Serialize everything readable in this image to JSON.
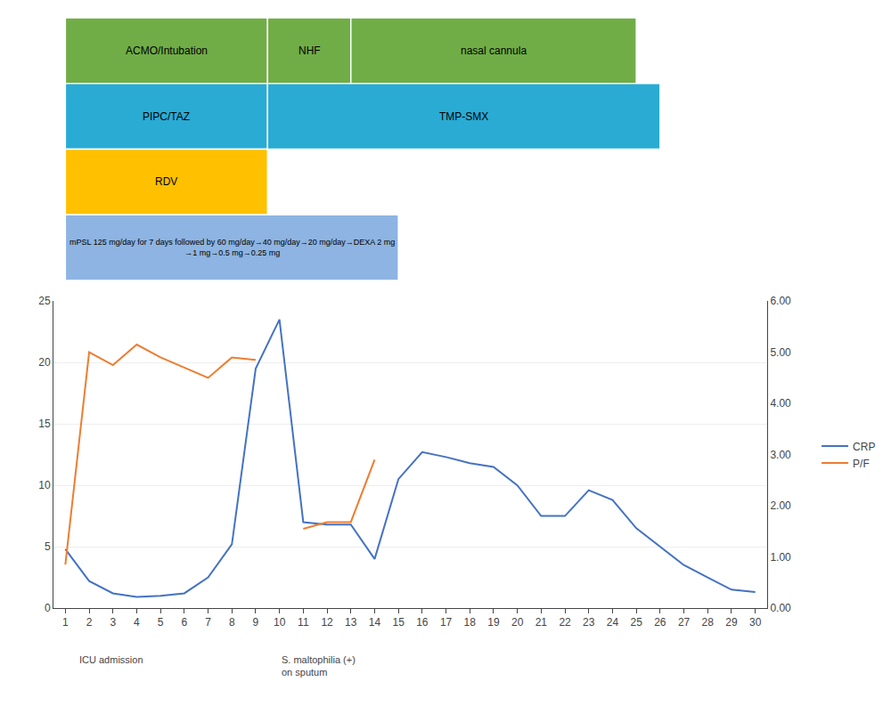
{
  "chart_data": [
    {
      "type": "line",
      "x": [
        1,
        2,
        3,
        4,
        5,
        6,
        7,
        8,
        9,
        10,
        11,
        12,
        13,
        14,
        15,
        16,
        17,
        18,
        19,
        20,
        21,
        22,
        23,
        24,
        25,
        26,
        27,
        28,
        29,
        30
      ],
      "series": [
        {
          "name": "CRP",
          "color": "#4472C4",
          "values": [
            4.8,
            2.2,
            1.2,
            0.9,
            1.0,
            1.2,
            2.5,
            5.2,
            19.5,
            23.5,
            7.0,
            6.8,
            6.8,
            4.0,
            10.5,
            12.7,
            12.3,
            11.8,
            11.5,
            10.0,
            7.5,
            7.5,
            9.6,
            8.8,
            6.5,
            5.0,
            3.5,
            2.5,
            1.5,
            1.3
          ]
        },
        {
          "name": "P/F",
          "color": "#ED7D31",
          "axis": "y2",
          "values": [
            0.85,
            5.0,
            4.75,
            5.15,
            4.9,
            4.7,
            4.5,
            4.9,
            4.85,
            null,
            1.55,
            1.68,
            1.68,
            2.9,
            null,
            null,
            null,
            null,
            null,
            null,
            null,
            null,
            null,
            null,
            null,
            null,
            null,
            null,
            null,
            null
          ]
        }
      ],
      "xlim": [
        0.5,
        30.5
      ],
      "xticks": [
        1,
        2,
        3,
        4,
        5,
        6,
        7,
        8,
        9,
        10,
        11,
        12,
        13,
        14,
        15,
        16,
        17,
        18,
        19,
        20,
        21,
        22,
        23,
        24,
        25,
        26,
        27,
        28,
        29,
        30
      ],
      "ylim": [
        0,
        25
      ],
      "yticks": [
        0,
        5,
        10,
        15,
        20,
        25
      ],
      "y2lim": [
        0.0,
        6.0
      ],
      "y2ticks": [
        {
          "value": 0.0,
          "label": "0.00"
        },
        {
          "value": 1.0,
          "label": "1.00"
        },
        {
          "value": 2.0,
          "label": "2.00"
        },
        {
          "value": 3.0,
          "label": "3.00"
        },
        {
          "value": 4.0,
          "label": "4.00"
        },
        {
          "value": 5.0,
          "label": "5.00"
        },
        {
          "value": 6.0,
          "label": "6.00"
        }
      ],
      "grid": true,
      "legend": "right",
      "annotations": [
        {
          "text": "ICU admission",
          "x": 1.5
        },
        {
          "text": "S. maltophilia (+)\non sputum",
          "x": 10
        }
      ]
    },
    {
      "type": "bar",
      "orientation": "horizontal",
      "xlim": [
        0.5,
        30.5
      ],
      "tick_labels": false,
      "data_labels": true,
      "bars": [
        {
          "label": "ACMO/Intubation",
          "start": 1,
          "end": 9.5,
          "color": "#70AD47",
          "row": 0
        },
        {
          "label": "NHF",
          "start": 9.5,
          "end": 13,
          "color": "#70AD47",
          "row": 0
        },
        {
          "label": "nasal cannula",
          "start": 13,
          "end": 25,
          "color": "#70AD47",
          "row": 0
        },
        {
          "label": "PIPC/TAZ",
          "start": 1,
          "end": 9.5,
          "color": "#29ABD4",
          "row": 1
        },
        {
          "label": "TMP-SMX",
          "start": 9.5,
          "end": 26,
          "color": "#29ABD4",
          "row": 1
        },
        {
          "label": "RDV",
          "start": 1,
          "end": 9.5,
          "color": "#FFC000",
          "row": 2
        },
        {
          "label": "mPSL 125 mg/day for 7 days followed by 60 mg/day→40 mg/day→20 mg/day→DEXA 2 mg\n→1 mg→0.5 mg→0.25 mg",
          "start": 1,
          "end": 15,
          "color": "#8DB4E2",
          "row": 3
        }
      ]
    }
  ]
}
